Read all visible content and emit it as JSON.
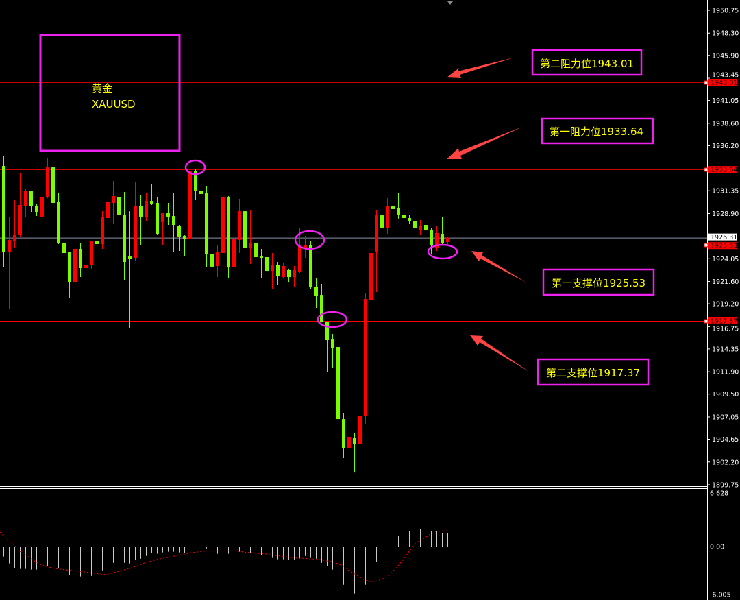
{
  "chart_data": [
    {
      "type": "candlestick",
      "symbol_box": {
        "name_cn": "黄金",
        "symbol": "XAUUSD"
      },
      "y_ticks": [
        "1950.75",
        "1948.30",
        "1945.90",
        "1943.45",
        "1941.05",
        "1938.60",
        "1936.20",
        "1931.35",
        "1928.90",
        "1924.05",
        "1921.60",
        "1919.20",
        "1916.75",
        "1914.35",
        "1911.90",
        "1909.50",
        "1907.05",
        "1904.65",
        "1902.20",
        "1899.75"
      ],
      "ylim": [
        1899.75,
        1950.75
      ],
      "current_price": {
        "value": 1926.31,
        "label": "1926.31"
      },
      "levels": [
        {
          "value": 1943.01,
          "label": "1943.01",
          "annotation": "第二阻力位1943.01"
        },
        {
          "value": 1933.64,
          "label": "1933.64",
          "annotation": "第一阻力位1933.64"
        },
        {
          "value": 1925.53,
          "label": "1925.53",
          "annotation": "第一支撑位1925.53"
        },
        {
          "value": 1917.37,
          "label": "1917.37",
          "annotation": "第二支撑位1917.37"
        }
      ],
      "colors": {
        "bull": "#ff0000",
        "bear": "#7cfc00",
        "level": "#ff0000",
        "annotation_box": "#ee22ee",
        "annotation_text": "#ffff00",
        "arrow": "#ff4444",
        "current_price_line": "#8a93a8"
      },
      "candles_ohlc": [
        [
          1934.02,
          1935.05,
          1923.19,
          1924.73
        ],
        [
          1924.81,
          1928.49,
          1918.69,
          1926.06
        ],
        [
          1925.99,
          1930.33,
          1925.25,
          1926.65
        ],
        [
          1926.58,
          1933.21,
          1926.43,
          1929.82
        ],
        [
          1929.74,
          1931.51,
          1928.57,
          1931.29
        ],
        [
          1931.29,
          1931.29,
          1929.08,
          1929.67
        ],
        [
          1929.74,
          1929.97,
          1928.64,
          1929.08
        ],
        [
          1928.57,
          1931.15,
          1928.27,
          1930.7
        ],
        [
          1930.63,
          1934.83,
          1930.56,
          1933.87
        ],
        [
          1933.87,
          1933.95,
          1929.6,
          1930.04
        ],
        [
          1930.19,
          1931.15,
          1925.62,
          1925.69
        ],
        [
          1925.77,
          1927.83,
          1923.85,
          1924.66
        ],
        [
          1924.73,
          1924.73,
          1919.87,
          1921.56
        ],
        [
          1921.56,
          1925.69,
          1921.34,
          1925.1
        ],
        [
          1925.1,
          1925.77,
          1922.08,
          1923.04
        ],
        [
          1923.04,
          1925.69,
          1922.08,
          1923.33
        ],
        [
          1923.41,
          1925.99,
          1922.97,
          1925.91
        ],
        [
          1925.91,
          1928.2,
          1924.51,
          1925.62
        ],
        [
          1925.62,
          1929.23,
          1925.1,
          1928.49
        ],
        [
          1928.42,
          1931.51,
          1928.2,
          1930.19
        ],
        [
          1930.04,
          1932.4,
          1927.76,
          1930.78
        ],
        [
          1930.7,
          1935.05,
          1928.42,
          1928.79
        ],
        [
          1928.79,
          1931.22,
          1921.71,
          1923.7
        ],
        [
          1924.29,
          1929.15,
          1916.63,
          1924.07
        ],
        [
          1924.14,
          1932.25,
          1923.85,
          1929.67
        ],
        [
          1929.74,
          1930.92,
          1925.54,
          1928.57
        ],
        [
          1928.49,
          1931.07,
          1928.12,
          1930.26
        ],
        [
          1930.26,
          1932.03,
          1929.82,
          1929.89
        ],
        [
          1930.04,
          1930.63,
          1926.65,
          1926.72
        ],
        [
          1927.98,
          1929.01,
          1925.54,
          1928.93
        ],
        [
          1928.93,
          1930.04,
          1927.68,
          1928.57
        ],
        [
          1928.64,
          1931.07,
          1924.73,
          1927.68
        ],
        [
          1927.61,
          1927.68,
          1924.88,
          1926.43
        ],
        [
          1926.5,
          1926.58,
          1924.29,
          1926.21
        ],
        [
          1926.21,
          1934.46,
          1926.06,
          1933.43
        ],
        [
          1933.43,
          1933.73,
          1930.41,
          1931.37
        ],
        [
          1931.37,
          1932.18,
          1929.23,
          1931.0
        ],
        [
          1931.07,
          1931.88,
          1923.11,
          1924.51
        ],
        [
          1924.59,
          1924.59,
          1920.61,
          1923.19
        ],
        [
          1923.26,
          1925.54,
          1922.08,
          1924.73
        ],
        [
          1924.66,
          1930.78,
          1924.51,
          1930.7
        ],
        [
          1930.7,
          1930.78,
          1922.01,
          1923.11
        ],
        [
          1923.19,
          1926.87,
          1922.45,
          1926.13
        ],
        [
          1926.06,
          1930.48,
          1924.66,
          1929.15
        ],
        [
          1929.15,
          1929.67,
          1924.44,
          1925.18
        ],
        [
          1925.18,
          1929.3,
          1923.48,
          1925.69
        ],
        [
          1925.69,
          1925.84,
          1922.6,
          1924.22
        ],
        [
          1924.29,
          1925.1,
          1921.93,
          1924.14
        ],
        [
          1924.22,
          1924.51,
          1922.3,
          1922.74
        ],
        [
          1922.74,
          1924.66,
          1920.75,
          1923.33
        ],
        [
          1923.41,
          1923.7,
          1921.2,
          1922.15
        ],
        [
          1922.08,
          1923.63,
          1921.93,
          1923.26
        ],
        [
          1922.82,
          1922.97,
          1921.56,
          1922.08
        ],
        [
          1922.08,
          1923.26,
          1921.05,
          1922.82
        ],
        [
          1922.67,
          1927.39,
          1922.52,
          1925.47
        ],
        [
          1925.18,
          1926.5,
          1924.14,
          1925.54
        ],
        [
          1925.47,
          1925.91,
          1920.82,
          1920.97
        ],
        [
          1921.05,
          1921.93,
          1918.76,
          1920.09
        ],
        [
          1920.16,
          1921.34,
          1917.22,
          1917.29
        ],
        [
          1917.29,
          1917.29,
          1911.91,
          1915.3
        ],
        [
          1915.37,
          1915.96,
          1912.35,
          1914.49
        ],
        [
          1914.56,
          1914.93,
          1904.98,
          1906.82
        ],
        [
          1906.82,
          1907.49,
          1902.62,
          1903.73
        ],
        [
          1903.73,
          1906.01,
          1902.18,
          1904.84
        ],
        [
          1904.76,
          1905.35,
          1901.07,
          1904.17
        ],
        [
          1904.17,
          1912.79,
          1900.78,
          1907.19
        ],
        [
          1907.19,
          1920.31,
          1906.31,
          1919.72
        ],
        [
          1919.65,
          1926.43,
          1918.47,
          1924.66
        ],
        [
          1924.73,
          1929.3,
          1920.46,
          1928.71
        ],
        [
          1928.71,
          1929.6,
          1926.28,
          1927.39
        ],
        [
          1927.39,
          1930.56,
          1926.72,
          1929.67
        ],
        [
          1929.67,
          1931.15,
          1928.64,
          1929.38
        ],
        [
          1929.45,
          1931.07,
          1928.35,
          1928.79
        ],
        [
          1928.79,
          1929.15,
          1927.17,
          1928.42
        ],
        [
          1928.42,
          1928.79,
          1927.76,
          1928.12
        ],
        [
          1928.05,
          1928.27,
          1927.02,
          1927.31
        ],
        [
          1927.09,
          1928.2,
          1926.58,
          1927.61
        ],
        [
          1927.68,
          1928.86,
          1925.54,
          1927.09
        ],
        [
          1927.17,
          1927.31,
          1924.51,
          1925.54
        ],
        [
          1925.18,
          1927.53,
          1924.88,
          1926.8
        ],
        [
          1926.72,
          1928.49,
          1925.62,
          1925.69
        ],
        [
          1925.84,
          1926.43,
          1925.62,
          1926.31
        ]
      ]
    },
    {
      "type": "bar+line",
      "y_ticks": [
        "6.628",
        "0.00",
        "-6.005"
      ],
      "ylim": [
        -6.005,
        6.628
      ],
      "colors": {
        "histogram": "#c8c8c8",
        "signal": "#ff0000"
      },
      "histogram": [
        -1.24,
        -2.09,
        -2.68,
        -2.77,
        -2.77,
        -2.85,
        -2.85,
        -2.77,
        -2.43,
        -2.34,
        -2.68,
        -3.02,
        -3.53,
        -3.53,
        -3.7,
        -3.79,
        -3.62,
        -3.36,
        -2.94,
        -2.43,
        -2.01,
        -1.75,
        -2.01,
        -2.09,
        -1.67,
        -1.5,
        -1.16,
        -0.82,
        -0.9,
        -0.73,
        -0.65,
        -0.65,
        -0.73,
        -0.82,
        -0.31,
        -0.06,
        0.11,
        -0.23,
        -0.56,
        -0.9,
        -0.48,
        -0.9,
        -0.9,
        -0.65,
        -0.82,
        -0.82,
        -0.99,
        -1.07,
        -1.33,
        -1.41,
        -1.58,
        -1.58,
        -1.67,
        -1.67,
        -1.5,
        -1.16,
        -1.41,
        -1.5,
        -2.01,
        -2.43,
        -2.85,
        -3.79,
        -4.72,
        -5.31,
        -5.82,
        -5.82,
        -4.72,
        -3.36,
        -1.92,
        -0.9,
        -0.03,
        0.76,
        1.27,
        1.69,
        1.95,
        2.03,
        2.12,
        2.12,
        1.95,
        1.86,
        1.69,
        1.61
      ],
      "signal": [
        1.33,
        0.71,
        0.17,
        -0.59,
        -0.96,
        -1.44,
        -1.95,
        -2.29,
        -2.51,
        -2.66,
        -2.77,
        -2.85,
        -2.94,
        -3.02,
        -3.08,
        -3.16,
        -3.25,
        -3.33,
        -3.42,
        -3.42,
        -3.22,
        -3.05,
        -2.88,
        -2.71,
        -2.49,
        -2.23,
        -1.95,
        -1.78,
        -1.61,
        -1.47,
        -1.36,
        -1.21,
        -1.07,
        -0.96,
        -0.79,
        -0.71,
        -0.62,
        -0.56,
        -0.56,
        -0.56,
        -0.54,
        -0.54,
        -0.54,
        -0.59,
        -0.71,
        -0.73,
        -0.85,
        -0.88,
        -0.93,
        -1.05,
        -1.13,
        -1.21,
        -1.33,
        -1.38,
        -1.47,
        -1.47,
        -1.55,
        -1.55,
        -1.64,
        -1.78,
        -1.89,
        -2.12,
        -2.46,
        -2.94,
        -3.36,
        -3.79,
        -4.18,
        -4.35,
        -4.29,
        -4.04,
        -3.73,
        -3.08,
        -2.37,
        -1.53,
        -0.62,
        0.23,
        0.79,
        1.13,
        1.58,
        1.84,
        1.92,
        1.92
      ]
    }
  ]
}
